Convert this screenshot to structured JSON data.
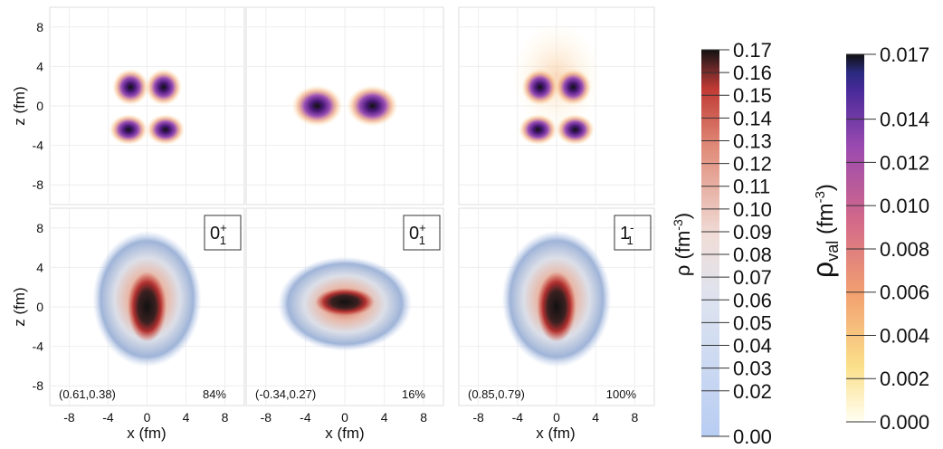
{
  "x_axis": {
    "label": "x (fm)",
    "lim": [
      -10,
      10
    ],
    "ticks": [
      -8,
      -4,
      0,
      4,
      8
    ]
  },
  "z_axis": {
    "label": "z (fm)",
    "lim": [
      -10,
      10
    ],
    "ticks": [
      8,
      4,
      0,
      -4,
      -8
    ]
  },
  "panels": [
    {
      "state": {
        "base": "0",
        "sup": "+",
        "sub": "1"
      },
      "deformation": "(0.61,0.38)",
      "weight": "84%"
    },
    {
      "state": {
        "base": "0",
        "sup": "+",
        "sub": "1"
      },
      "deformation": "(-0.34,0.27)",
      "weight": "16%"
    },
    {
      "state": {
        "base": "1",
        "sup": "-",
        "sub": "1"
      },
      "deformation": "(0.85,0.79)",
      "weight": "100%"
    }
  ],
  "colorbars": [
    {
      "symbol": "ρ",
      "unit": " (fm",
      "unit_exp": "-3",
      "unit_close": ")",
      "lim": [
        0,
        0.17
      ],
      "ticks": [
        0.17,
        0.16,
        0.15,
        0.14,
        0.13,
        0.12,
        0.11,
        {
          "value": 0.1,
          "label": "0.10"
        },
        0.09,
        0.08,
        0.07,
        0.06,
        0.05,
        0.04,
        0.03,
        0.02,
        {
          "value": 0,
          "label": "0.00"
        }
      ]
    },
    {
      "symbol": "ρ",
      "symbol_sub": "val",
      "unit": " (fm",
      "unit_exp": "-3",
      "unit_close": ")",
      "lim": [
        0,
        0.017
      ],
      "ticks": [
        0.017,
        0.014,
        0.012,
        {
          "value": 0.01,
          "label": "0.010"
        },
        0.008,
        0.006,
        0.004,
        0.002,
        {
          "value": 0,
          "label": "0.000"
        }
      ]
    }
  ]
}
